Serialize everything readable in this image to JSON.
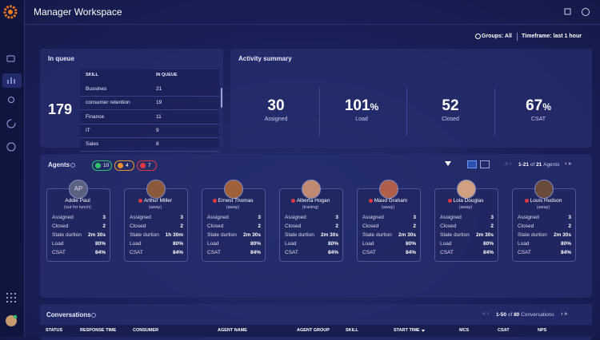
{
  "header": {
    "title": "Manager Workspace"
  },
  "filters": {
    "groups": "Groups: All",
    "timeframe": "Timeframe: last 1 hour"
  },
  "in_queue": {
    "title": "In queue",
    "total": "179",
    "columns": [
      "SKILL",
      "IN QUEUE"
    ],
    "rows": [
      [
        "Bussines",
        "21"
      ],
      [
        "consumer retention",
        "19"
      ],
      [
        "Finance",
        "11"
      ],
      [
        "IT",
        "9"
      ],
      [
        "Sales",
        "8"
      ]
    ]
  },
  "activity_summary": {
    "title": "Activity summary",
    "stats": [
      {
        "value": "30",
        "label": "Assigned"
      },
      {
        "value": "101",
        "unit": "%",
        "label": "Load"
      },
      {
        "value": "52",
        "label": "Closed"
      },
      {
        "value": "67",
        "unit": "%",
        "label": "CSAT"
      }
    ]
  },
  "agents": {
    "title": "Agents",
    "badges": [
      "10",
      "4",
      "7"
    ],
    "pagination": {
      "range": "1-21",
      "of": "of",
      "total": "21",
      "noun": "Agents"
    },
    "stat_labels": [
      "Assigned",
      "Closed",
      "State durtion",
      "Load",
      "CSAT"
    ],
    "items": [
      {
        "initials": "AP",
        "name": "Addie Paul",
        "status": "(out for lunch)",
        "stats": [
          "3",
          "2",
          "2m 30s",
          "80%",
          "84%"
        ]
      },
      {
        "name": "Arthur Miller",
        "status": "(away)",
        "stats": [
          "3",
          "2",
          "1h 30m",
          "80%",
          "84%"
        ]
      },
      {
        "name": "Ernest Thomas",
        "status": "(away)",
        "stats": [
          "3",
          "2",
          "2m 30s",
          "80%",
          "84%"
        ]
      },
      {
        "name": "Alberta Hogan",
        "status": "(traning)",
        "stats": [
          "3",
          "2",
          "2m 30s",
          "80%",
          "84%"
        ]
      },
      {
        "name": "Maud Graham",
        "status": "(away)",
        "stats": [
          "3",
          "2",
          "2m 30s",
          "80%",
          "84%"
        ]
      },
      {
        "name": "Lola Douglas",
        "status": "(away)",
        "stats": [
          "3",
          "2",
          "2m 30s",
          "80%",
          "84%"
        ]
      },
      {
        "name": "Louis Hudson",
        "status": "(away)",
        "stats": [
          "3",
          "2",
          "2m 30s",
          "80%",
          "84%"
        ]
      }
    ]
  },
  "conversations": {
    "title": "Conversations",
    "pagination": {
      "range": "1-50",
      "of": "of",
      "total": "80",
      "noun": "Conversations"
    },
    "columns": [
      "STATUS",
      "RESPONSE TIME",
      "CONSUMER",
      "AGENT NAME",
      "AGENT GROUP",
      "SKILL",
      "START TIME",
      "MCS",
      "CSAT",
      "NPS"
    ]
  }
}
